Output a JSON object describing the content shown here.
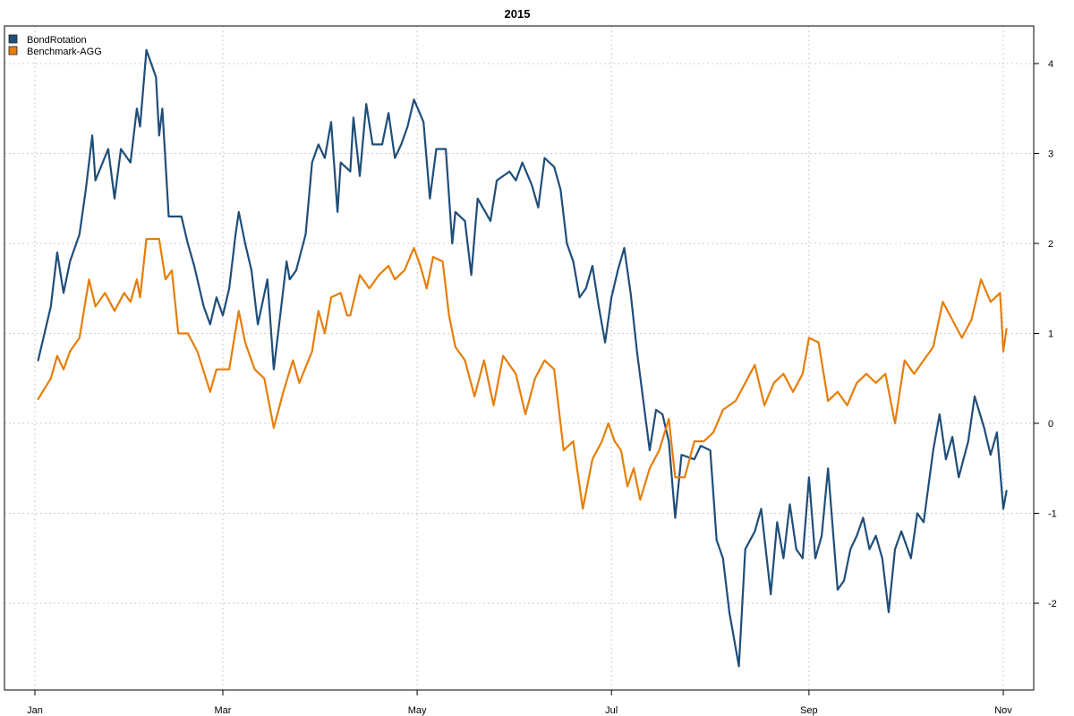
{
  "chart_data": {
    "type": "line",
    "title": "2015",
    "xlabel": "",
    "ylabel": "",
    "x_ticks": [
      {
        "label": "Jan",
        "date": "2015-01-01"
      },
      {
        "label": "Mar",
        "date": "2015-03-01"
      },
      {
        "label": "May",
        "date": "2015-05-01"
      },
      {
        "label": "Jul",
        "date": "2015-07-01"
      },
      {
        "label": "Sep",
        "date": "2015-09-01"
      },
      {
        "label": "Nov",
        "date": "2015-11-01"
      }
    ],
    "y_ticks": [
      -2,
      -1,
      0,
      1,
      2,
      3,
      4
    ],
    "xlim": [
      "2015-01-01",
      "2015-11-01"
    ],
    "ylim": [
      -3.0,
      4.4
    ],
    "grid": true,
    "y_axis_side": "right",
    "legend_position": "top-left",
    "series": [
      {
        "name": "BondRotation",
        "color": "#1f4e79",
        "points": [
          [
            "2015-01-02",
            0.7
          ],
          [
            "2015-01-06",
            1.3
          ],
          [
            "2015-01-08",
            1.9
          ],
          [
            "2015-01-10",
            1.45
          ],
          [
            "2015-01-12",
            1.8
          ],
          [
            "2015-01-15",
            2.1
          ],
          [
            "2015-01-17",
            2.6
          ],
          [
            "2015-01-19",
            3.2
          ],
          [
            "2015-01-20",
            2.7
          ],
          [
            "2015-01-24",
            3.05
          ],
          [
            "2015-01-26",
            2.5
          ],
          [
            "2015-01-28",
            3.05
          ],
          [
            "2015-01-31",
            2.9
          ],
          [
            "2015-02-02",
            3.5
          ],
          [
            "2015-02-03",
            3.3
          ],
          [
            "2015-02-05",
            4.15
          ],
          [
            "2015-02-08",
            3.85
          ],
          [
            "2015-02-09",
            3.2
          ],
          [
            "2015-02-10",
            3.5
          ],
          [
            "2015-02-12",
            2.3
          ],
          [
            "2015-02-16",
            2.3
          ],
          [
            "2015-02-18",
            2.0
          ],
          [
            "2015-02-20",
            1.75
          ],
          [
            "2015-02-23",
            1.3
          ],
          [
            "2015-02-25",
            1.1
          ],
          [
            "2015-02-27",
            1.4
          ],
          [
            "2015-03-01",
            1.2
          ],
          [
            "2015-03-03",
            1.5
          ],
          [
            "2015-03-05",
            2.1
          ],
          [
            "2015-03-06",
            2.35
          ],
          [
            "2015-03-08",
            2.0
          ],
          [
            "2015-03-10",
            1.7
          ],
          [
            "2015-03-12",
            1.1
          ],
          [
            "2015-03-15",
            1.6
          ],
          [
            "2015-03-17",
            0.6
          ],
          [
            "2015-03-19",
            1.2
          ],
          [
            "2015-03-21",
            1.8
          ],
          [
            "2015-03-22",
            1.6
          ],
          [
            "2015-03-24",
            1.7
          ],
          [
            "2015-03-27",
            2.1
          ],
          [
            "2015-03-29",
            2.9
          ],
          [
            "2015-03-31",
            3.1
          ],
          [
            "2015-04-02",
            2.95
          ],
          [
            "2015-04-04",
            3.35
          ],
          [
            "2015-04-06",
            2.35
          ],
          [
            "2015-04-07",
            2.9
          ],
          [
            "2015-04-10",
            2.8
          ],
          [
            "2015-04-11",
            3.4
          ],
          [
            "2015-04-13",
            2.75
          ],
          [
            "2015-04-15",
            3.55
          ],
          [
            "2015-04-17",
            3.1
          ],
          [
            "2015-04-20",
            3.1
          ],
          [
            "2015-04-22",
            3.45
          ],
          [
            "2015-04-24",
            2.95
          ],
          [
            "2015-04-26",
            3.1
          ],
          [
            "2015-04-28",
            3.3
          ],
          [
            "2015-04-30",
            3.6
          ],
          [
            "2015-05-03",
            3.35
          ],
          [
            "2015-05-05",
            2.5
          ],
          [
            "2015-05-07",
            3.05
          ],
          [
            "2015-05-10",
            3.05
          ],
          [
            "2015-05-12",
            2.0
          ],
          [
            "2015-05-13",
            2.35
          ],
          [
            "2015-05-16",
            2.25
          ],
          [
            "2015-05-18",
            1.65
          ],
          [
            "2015-05-20",
            2.5
          ],
          [
            "2015-05-24",
            2.25
          ],
          [
            "2015-05-26",
            2.7
          ],
          [
            "2015-05-30",
            2.8
          ],
          [
            "2015-06-01",
            2.7
          ],
          [
            "2015-06-03",
            2.9
          ],
          [
            "2015-06-06",
            2.65
          ],
          [
            "2015-06-08",
            2.4
          ],
          [
            "2015-06-10",
            2.95
          ],
          [
            "2015-06-13",
            2.85
          ],
          [
            "2015-06-15",
            2.6
          ],
          [
            "2015-06-17",
            2.0
          ],
          [
            "2015-06-19",
            1.8
          ],
          [
            "2015-06-21",
            1.4
          ],
          [
            "2015-06-23",
            1.5
          ],
          [
            "2015-06-25",
            1.75
          ],
          [
            "2015-06-27",
            1.3
          ],
          [
            "2015-06-29",
            0.9
          ],
          [
            "2015-07-01",
            1.4
          ],
          [
            "2015-07-03",
            1.7
          ],
          [
            "2015-07-05",
            1.95
          ],
          [
            "2015-07-07",
            1.45
          ],
          [
            "2015-07-09",
            0.8
          ],
          [
            "2015-07-11",
            0.25
          ],
          [
            "2015-07-13",
            -0.3
          ],
          [
            "2015-07-15",
            0.15
          ],
          [
            "2015-07-17",
            0.1
          ],
          [
            "2015-07-19",
            -0.2
          ],
          [
            "2015-07-21",
            -1.05
          ],
          [
            "2015-07-23",
            -0.35
          ],
          [
            "2015-07-27",
            -0.4
          ],
          [
            "2015-07-29",
            -0.25
          ],
          [
            "2015-08-01",
            -0.3
          ],
          [
            "2015-08-03",
            -1.3
          ],
          [
            "2015-08-05",
            -1.5
          ],
          [
            "2015-08-07",
            -2.1
          ],
          [
            "2015-08-10",
            -2.7
          ],
          [
            "2015-08-12",
            -1.4
          ],
          [
            "2015-08-15",
            -1.2
          ],
          [
            "2015-08-17",
            -0.95
          ],
          [
            "2015-08-20",
            -1.9
          ],
          [
            "2015-08-22",
            -1.1
          ],
          [
            "2015-08-24",
            -1.5
          ],
          [
            "2015-08-26",
            -0.9
          ],
          [
            "2015-08-28",
            -1.4
          ],
          [
            "2015-08-30",
            -1.5
          ],
          [
            "2015-09-01",
            -0.6
          ],
          [
            "2015-09-03",
            -1.5
          ],
          [
            "2015-09-05",
            -1.25
          ],
          [
            "2015-09-07",
            -0.5
          ],
          [
            "2015-09-10",
            -1.85
          ],
          [
            "2015-09-12",
            -1.75
          ],
          [
            "2015-09-14",
            -1.4
          ],
          [
            "2015-09-16",
            -1.25
          ],
          [
            "2015-09-18",
            -1.05
          ],
          [
            "2015-09-20",
            -1.4
          ],
          [
            "2015-09-22",
            -1.25
          ],
          [
            "2015-09-24",
            -1.5
          ],
          [
            "2015-09-26",
            -2.1
          ],
          [
            "2015-09-28",
            -1.4
          ],
          [
            "2015-09-30",
            -1.2
          ],
          [
            "2015-10-03",
            -1.5
          ],
          [
            "2015-10-05",
            -1.0
          ],
          [
            "2015-10-07",
            -1.1
          ],
          [
            "2015-10-10",
            -0.3
          ],
          [
            "2015-10-12",
            0.1
          ],
          [
            "2015-10-14",
            -0.4
          ],
          [
            "2015-10-16",
            -0.15
          ],
          [
            "2015-10-18",
            -0.6
          ],
          [
            "2015-10-21",
            -0.2
          ],
          [
            "2015-10-23",
            0.3
          ],
          [
            "2015-10-26",
            -0.05
          ],
          [
            "2015-10-28",
            -0.35
          ],
          [
            "2015-10-30",
            -0.1
          ],
          [
            "2015-11-01",
            -0.95
          ],
          [
            "2015-11-02",
            -0.75
          ]
        ]
      },
      {
        "name": "Benchmark-AGG",
        "color": "#e67e0a",
        "points": [
          [
            "2015-01-02",
            0.27
          ],
          [
            "2015-01-06",
            0.5
          ],
          [
            "2015-01-08",
            0.75
          ],
          [
            "2015-01-10",
            0.6
          ],
          [
            "2015-01-12",
            0.8
          ],
          [
            "2015-01-15",
            0.95
          ],
          [
            "2015-01-18",
            1.6
          ],
          [
            "2015-01-20",
            1.3
          ],
          [
            "2015-01-23",
            1.45
          ],
          [
            "2015-01-26",
            1.25
          ],
          [
            "2015-01-29",
            1.45
          ],
          [
            "2015-01-31",
            1.35
          ],
          [
            "2015-02-02",
            1.6
          ],
          [
            "2015-02-03",
            1.4
          ],
          [
            "2015-02-05",
            2.05
          ],
          [
            "2015-02-09",
            2.05
          ],
          [
            "2015-02-11",
            1.6
          ],
          [
            "2015-02-13",
            1.7
          ],
          [
            "2015-02-15",
            1.0
          ],
          [
            "2015-02-18",
            1.0
          ],
          [
            "2015-02-21",
            0.8
          ],
          [
            "2015-02-25",
            0.35
          ],
          [
            "2015-02-27",
            0.6
          ],
          [
            "2015-03-03",
            0.6
          ],
          [
            "2015-03-06",
            1.25
          ],
          [
            "2015-03-08",
            0.9
          ],
          [
            "2015-03-11",
            0.6
          ],
          [
            "2015-03-14",
            0.5
          ],
          [
            "2015-03-17",
            -0.05
          ],
          [
            "2015-03-20",
            0.35
          ],
          [
            "2015-03-23",
            0.7
          ],
          [
            "2015-03-25",
            0.45
          ],
          [
            "2015-03-29",
            0.8
          ],
          [
            "2015-03-31",
            1.25
          ],
          [
            "2015-04-02",
            1.0
          ],
          [
            "2015-04-04",
            1.4
          ],
          [
            "2015-04-07",
            1.45
          ],
          [
            "2015-04-09",
            1.2
          ],
          [
            "2015-04-10",
            1.2
          ],
          [
            "2015-04-13",
            1.65
          ],
          [
            "2015-04-16",
            1.5
          ],
          [
            "2015-04-19",
            1.65
          ],
          [
            "2015-04-22",
            1.75
          ],
          [
            "2015-04-24",
            1.6
          ],
          [
            "2015-04-27",
            1.7
          ],
          [
            "2015-04-30",
            1.95
          ],
          [
            "2015-05-02",
            1.75
          ],
          [
            "2015-05-04",
            1.5
          ],
          [
            "2015-05-06",
            1.85
          ],
          [
            "2015-05-09",
            1.8
          ],
          [
            "2015-05-11",
            1.2
          ],
          [
            "2015-05-13",
            0.85
          ],
          [
            "2015-05-16",
            0.7
          ],
          [
            "2015-05-19",
            0.3
          ],
          [
            "2015-05-22",
            0.7
          ],
          [
            "2015-05-25",
            0.2
          ],
          [
            "2015-05-28",
            0.75
          ],
          [
            "2015-06-01",
            0.55
          ],
          [
            "2015-06-04",
            0.1
          ],
          [
            "2015-06-07",
            0.5
          ],
          [
            "2015-06-10",
            0.7
          ],
          [
            "2015-06-13",
            0.6
          ],
          [
            "2015-06-16",
            -0.3
          ],
          [
            "2015-06-19",
            -0.2
          ],
          [
            "2015-06-22",
            -0.95
          ],
          [
            "2015-06-25",
            -0.4
          ],
          [
            "2015-06-28",
            -0.2
          ],
          [
            "2015-06-30",
            0.0
          ],
          [
            "2015-07-02",
            -0.2
          ],
          [
            "2015-07-04",
            -0.3
          ],
          [
            "2015-07-06",
            -0.7
          ],
          [
            "2015-07-08",
            -0.5
          ],
          [
            "2015-07-10",
            -0.85
          ],
          [
            "2015-07-13",
            -0.5
          ],
          [
            "2015-07-16",
            -0.3
          ],
          [
            "2015-07-19",
            0.05
          ],
          [
            "2015-07-21",
            -0.6
          ],
          [
            "2015-07-24",
            -0.6
          ],
          [
            "2015-07-27",
            -0.2
          ],
          [
            "2015-07-30",
            -0.2
          ],
          [
            "2015-08-02",
            -0.1
          ],
          [
            "2015-08-05",
            0.15
          ],
          [
            "2015-08-09",
            0.25
          ],
          [
            "2015-08-12",
            0.45
          ],
          [
            "2015-08-15",
            0.65
          ],
          [
            "2015-08-18",
            0.2
          ],
          [
            "2015-08-21",
            0.45
          ],
          [
            "2015-08-24",
            0.55
          ],
          [
            "2015-08-27",
            0.35
          ],
          [
            "2015-08-30",
            0.55
          ],
          [
            "2015-09-01",
            0.95
          ],
          [
            "2015-09-04",
            0.9
          ],
          [
            "2015-09-07",
            0.25
          ],
          [
            "2015-09-10",
            0.35
          ],
          [
            "2015-09-13",
            0.2
          ],
          [
            "2015-09-16",
            0.45
          ],
          [
            "2015-09-19",
            0.55
          ],
          [
            "2015-09-22",
            0.45
          ],
          [
            "2015-09-25",
            0.55
          ],
          [
            "2015-09-28",
            0.0
          ],
          [
            "2015-10-01",
            0.7
          ],
          [
            "2015-10-04",
            0.55
          ],
          [
            "2015-10-07",
            0.7
          ],
          [
            "2015-10-10",
            0.85
          ],
          [
            "2015-10-13",
            1.35
          ],
          [
            "2015-10-16",
            1.15
          ],
          [
            "2015-10-19",
            0.95
          ],
          [
            "2015-10-22",
            1.15
          ],
          [
            "2015-10-25",
            1.6
          ],
          [
            "2015-10-28",
            1.35
          ],
          [
            "2015-10-31",
            1.45
          ],
          [
            "2015-11-01",
            0.8
          ],
          [
            "2015-11-02",
            1.05
          ]
        ]
      }
    ]
  }
}
